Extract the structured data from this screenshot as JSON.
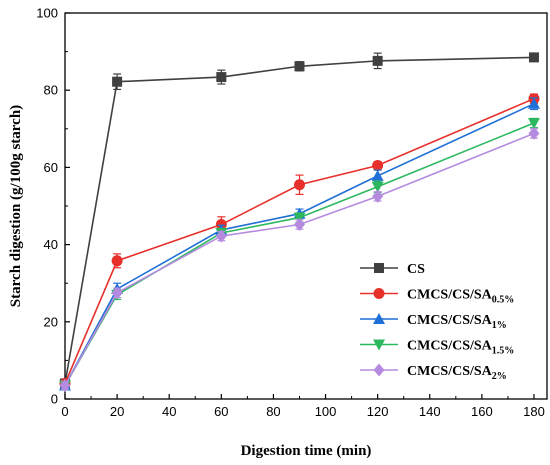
{
  "chart_data": {
    "type": "line",
    "xlabel": "Digestion time (min)",
    "ylabel": "Starch digestion (g/100g starch)",
    "xlim": [
      0,
      185
    ],
    "ylim": [
      0,
      100
    ],
    "xticks": [
      0,
      20,
      40,
      60,
      80,
      100,
      120,
      140,
      160,
      180
    ],
    "yticks": [
      0,
      20,
      40,
      60,
      80,
      100
    ],
    "x": [
      0,
      20,
      60,
      90,
      120,
      180
    ],
    "legend_position": "bottom-right",
    "series": [
      {
        "name": "CS",
        "name_base": "CS",
        "name_sub": "",
        "color": "#404040",
        "marker": "square",
        "values": [
          4,
          82.2,
          83.4,
          86.2,
          87.6,
          88.5
        ],
        "errors": [
          1.2,
          2.0,
          1.8,
          1.2,
          2.0,
          1.0
        ]
      },
      {
        "name": "CMCS/CS/SA0.5%",
        "name_base": "CMCS/CS/SA",
        "name_sub": "0.5%",
        "color": "#e8302b",
        "marker": "circle",
        "values": [
          4,
          35.8,
          45.2,
          55.5,
          60.5,
          77.8
        ],
        "errors": [
          1.0,
          1.8,
          2.0,
          2.5,
          1.0,
          1.2
        ]
      },
      {
        "name": "CMCS/CS/SA1%",
        "name_base": "CMCS/CS/SA",
        "name_sub": "1%",
        "color": "#1f6fd6",
        "marker": "triangle-up",
        "values": [
          3.5,
          28.5,
          43.8,
          48.0,
          57.8,
          76.5
        ],
        "errors": [
          1.0,
          1.5,
          1.2,
          1.2,
          1.5,
          1.5
        ]
      },
      {
        "name": "CMCS/CS/SA1.5%",
        "name_base": "CMCS/CS/SA",
        "name_sub": "1.5%",
        "color": "#2db860",
        "marker": "triangle-down",
        "values": [
          3.5,
          27.0,
          43.0,
          47.0,
          55.0,
          71.5
        ],
        "errors": [
          1.0,
          1.2,
          1.2,
          1.2,
          1.5,
          1.2
        ]
      },
      {
        "name": "CMCS/CS/SA2%",
        "name_base": "CMCS/CS/SA",
        "name_sub": "2%",
        "color": "#b58be0",
        "marker": "diamond",
        "values": [
          3.5,
          27.5,
          42.2,
          45.2,
          52.5,
          68.8
        ],
        "errors": [
          1.0,
          1.2,
          1.2,
          1.2,
          1.2,
          1.2
        ]
      }
    ]
  }
}
